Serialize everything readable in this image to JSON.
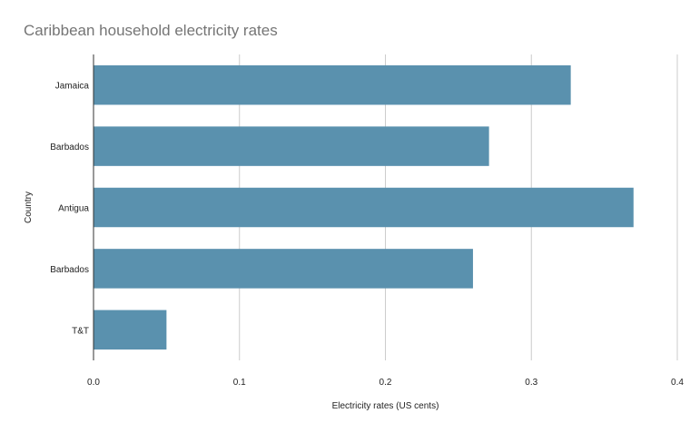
{
  "chart_data": {
    "type": "bar",
    "orientation": "horizontal",
    "title": "Caribbean household electricity rates",
    "xlabel": "Electricity rates (US cents)",
    "ylabel": "Country",
    "categories": [
      "Jamaica",
      "Barbados",
      "Antigua",
      "Barbados",
      "T&T"
    ],
    "values": [
      0.327,
      0.271,
      0.37,
      0.26,
      0.05
    ],
    "xlim": [
      0,
      0.4
    ],
    "xticks": [
      "0.0",
      "0.1",
      "0.2",
      "0.3",
      "0.4"
    ],
    "grid": true,
    "legend": "none",
    "bar_color": "#5a91ae"
  }
}
